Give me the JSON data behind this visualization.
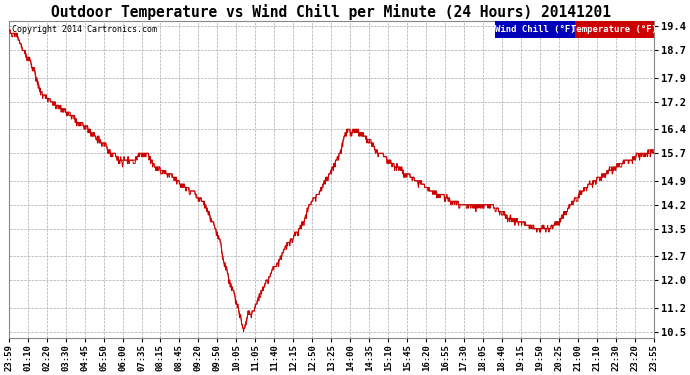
{
  "title": "Outdoor Temperature vs Wind Chill per Minute (24 Hours) 20141201",
  "copyright": "Copyright 2014 Cartronics.com",
  "legend_items": [
    "Wind Chill (°F)",
    "Temperature (°F)"
  ],
  "legend_colors": [
    "#0000bb",
    "#cc0000"
  ],
  "bg_color": "#ffffff",
  "plot_bg_color": "#ffffff",
  "grid_color": "#aaaaaa",
  "line_color": "#cc0000",
  "yticks": [
    10.5,
    11.2,
    12.0,
    12.7,
    13.5,
    14.2,
    14.9,
    15.7,
    16.4,
    17.2,
    17.9,
    18.7,
    19.4
  ],
  "ymin": 10.3,
  "ymax": 19.55,
  "xtick_labels": [
    "23:59",
    "01:10",
    "02:20",
    "03:30",
    "04:45",
    "05:50",
    "06:00",
    "07:35",
    "08:15",
    "08:45",
    "09:20",
    "09:50",
    "10:05",
    "11:05",
    "11:40",
    "12:15",
    "12:50",
    "13:25",
    "14:00",
    "14:35",
    "15:10",
    "15:45",
    "16:20",
    "16:55",
    "17:30",
    "18:05",
    "18:40",
    "19:15",
    "19:50",
    "20:25",
    "21:00",
    "21:10",
    "22:30",
    "23:20",
    "23:55"
  ],
  "title_fontsize": 10.5,
  "axis_fontsize": 6.5,
  "ytick_fontsize": 7.5
}
